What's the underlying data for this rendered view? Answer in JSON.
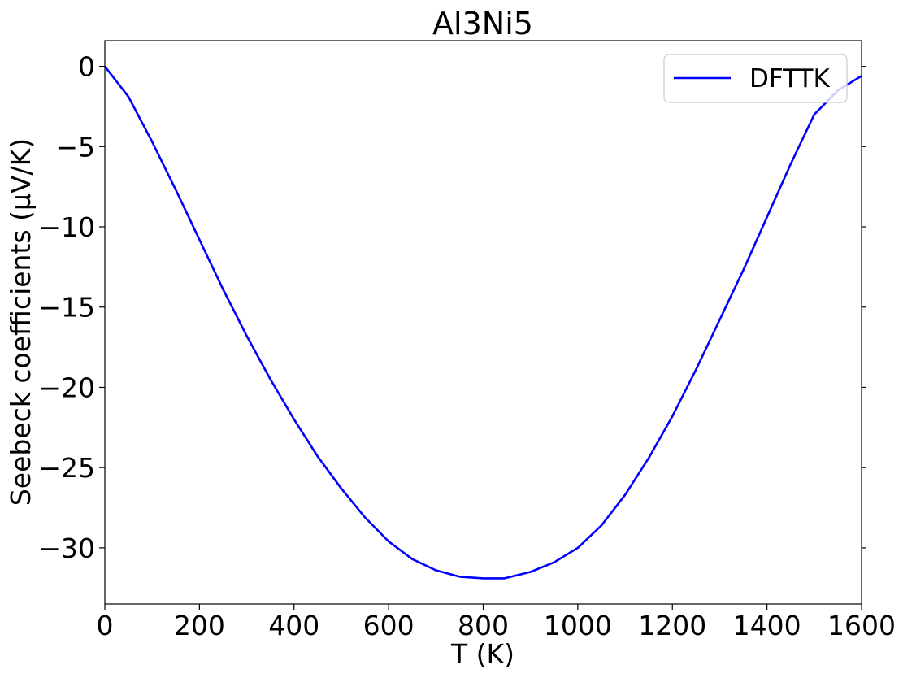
{
  "chart_data": {
    "type": "line",
    "title": "Al3Ni5",
    "xlabel": "T (K)",
    "ylabel": "Seebeck coefficients (μV/K)",
    "xlim": [
      0,
      1600
    ],
    "ylim": [
      -33.5,
      1.6
    ],
    "xticks": [
      0,
      200,
      400,
      600,
      800,
      1000,
      1200,
      1400,
      1600
    ],
    "xtick_labels": [
      "0",
      "200",
      "400",
      "600",
      "800",
      "1000",
      "1200",
      "1400",
      "1600"
    ],
    "yticks": [
      0,
      -5,
      -10,
      -15,
      -20,
      -25,
      -30
    ],
    "ytick_labels": [
      "0",
      "−5",
      "−10",
      "−15",
      "−20",
      "−25",
      "−30"
    ],
    "grid": false,
    "legend": {
      "position": "top-right",
      "entries": [
        "DFTTK"
      ]
    },
    "series": [
      {
        "name": "DFTTK",
        "color": "#0000ff",
        "x": [
          0,
          50,
          100,
          150,
          200,
          250,
          300,
          350,
          400,
          450,
          500,
          550,
          600,
          650,
          700,
          750,
          800,
          845,
          900,
          950,
          1000,
          1050,
          1100,
          1150,
          1200,
          1250,
          1300,
          1350,
          1400,
          1450,
          1500,
          1550,
          1600
        ],
        "y": [
          0,
          -1.9,
          -4.7,
          -7.7,
          -10.8,
          -13.9,
          -16.8,
          -19.5,
          -22.0,
          -24.3,
          -26.3,
          -28.1,
          -29.6,
          -30.7,
          -31.4,
          -31.8,
          -31.9,
          -31.9,
          -31.5,
          -30.9,
          -30.0,
          -28.6,
          -26.7,
          -24.4,
          -21.8,
          -18.9,
          -15.8,
          -12.7,
          -9.4,
          -6.1,
          -3.0,
          -1.5,
          -0.6
        ]
      }
    ]
  }
}
